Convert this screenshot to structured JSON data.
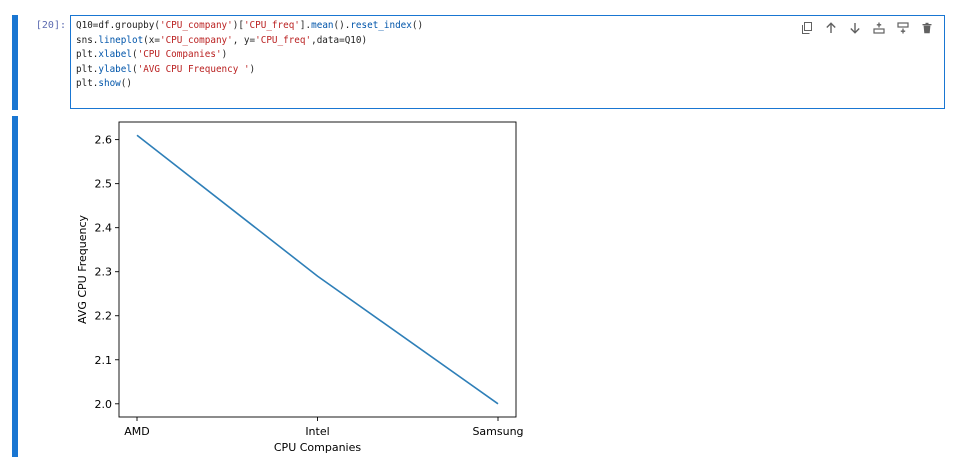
{
  "cell": {
    "prompt": "[20]:",
    "code_lines": [
      [
        {
          "t": "Q10=df.groupby(",
          "c": "v"
        },
        {
          "t": "'CPU_company'",
          "c": "s"
        },
        {
          "t": ")[",
          "c": "v"
        },
        {
          "t": "'CPU_freq'",
          "c": "s"
        },
        {
          "t": "].",
          "c": "v"
        },
        {
          "t": "mean",
          "c": "f"
        },
        {
          "t": "().",
          "c": "v"
        },
        {
          "t": "reset_index",
          "c": "f"
        },
        {
          "t": "()",
          "c": "v"
        }
      ],
      [
        {
          "t": "sns.",
          "c": "v"
        },
        {
          "t": "lineplot",
          "c": "f"
        },
        {
          "t": "(x=",
          "c": "v"
        },
        {
          "t": "'CPU_company'",
          "c": "s"
        },
        {
          "t": ", y=",
          "c": "v"
        },
        {
          "t": "'CPU_freq'",
          "c": "s"
        },
        {
          "t": ",data=Q10)",
          "c": "v"
        }
      ],
      [
        {
          "t": "plt.",
          "c": "v"
        },
        {
          "t": "xlabel",
          "c": "f"
        },
        {
          "t": "(",
          "c": "v"
        },
        {
          "t": "'CPU Companies'",
          "c": "s"
        },
        {
          "t": ")",
          "c": "v"
        }
      ],
      [
        {
          "t": "plt.",
          "c": "v"
        },
        {
          "t": "ylabel",
          "c": "f"
        },
        {
          "t": "(",
          "c": "v"
        },
        {
          "t": "'AVG CPU Frequency '",
          "c": "s"
        },
        {
          "t": ")",
          "c": "v"
        }
      ],
      [
        {
          "t": "plt.",
          "c": "v"
        },
        {
          "t": "show",
          "c": "f"
        },
        {
          "t": "()",
          "c": "v"
        }
      ]
    ]
  },
  "toolbar": {
    "items": [
      {
        "name": "duplicate-cell-button",
        "icon": "copy-icon"
      },
      {
        "name": "move-up-button",
        "icon": "arrow-up-icon"
      },
      {
        "name": "move-down-button",
        "icon": "arrow-down-icon"
      },
      {
        "name": "insert-above-button",
        "icon": "insert-above-icon"
      },
      {
        "name": "insert-below-button",
        "icon": "insert-below-icon"
      },
      {
        "name": "delete-cell-button",
        "icon": "trash-icon"
      }
    ]
  },
  "colors": {
    "line": "#2e7fb8",
    "cell_bar": "#1976d2",
    "icon": "#616161"
  },
  "chart_data": {
    "type": "line",
    "categories": [
      "AMD",
      "Intel",
      "Samsung"
    ],
    "values": [
      2.61,
      2.29,
      2.0
    ],
    "xlabel": "CPU Companies",
    "ylabel": "AVG CPU Frequency",
    "ylim": [
      1.97,
      2.64
    ],
    "yticks": [
      "2.0",
      "2.1",
      "2.2",
      "2.3",
      "2.4",
      "2.5",
      "2.6"
    ],
    "grid": false
  }
}
